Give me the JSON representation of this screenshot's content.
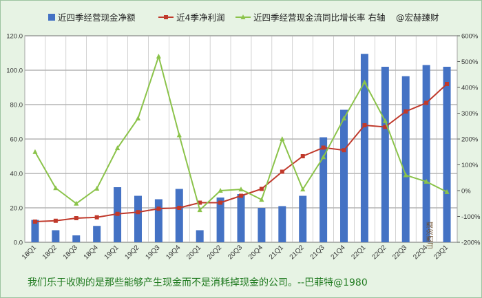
{
  "chart_data": {
    "type": "bar+line",
    "categories": [
      "18Q1",
      "18Q2",
      "18Q3",
      "18Q4",
      "19Q1",
      "19Q2",
      "19Q3",
      "19Q4",
      "20Q1",
      "20Q2",
      "20Q3",
      "20Q4",
      "21Q1",
      "21Q2",
      "21Q3",
      "21Q4",
      "22Q1",
      "22Q2",
      "22Q3",
      "22Q4",
      "23Q1"
    ],
    "series": [
      {
        "name": "近四季经营现金净额",
        "type": "bar",
        "axis": "left",
        "color": "#4472c4",
        "values": [
          13,
          7,
          4,
          9.5,
          32,
          27,
          25,
          31,
          7,
          26,
          28,
          20,
          21,
          27,
          61,
          77,
          109.5,
          102,
          96.5,
          103,
          102
        ]
      },
      {
        "name": "近4季净利润",
        "type": "line",
        "axis": "left",
        "color": "#c0392b",
        "values": [
          12,
          12.5,
          14,
          14.5,
          16.5,
          17.5,
          19.5,
          20,
          23,
          23,
          27,
          31,
          41,
          50,
          55,
          53.5,
          68,
          67,
          76,
          81,
          92
        ]
      },
      {
        "name": "近四季经营现金流同比增长率 右轴",
        "type": "line",
        "axis": "right",
        "color": "#8bc34a",
        "values": [
          150,
          10,
          -50,
          8,
          165,
          280,
          520,
          215,
          -75,
          0,
          5,
          -35,
          200,
          5,
          130,
          280,
          420,
          270,
          60,
          35,
          -5
        ]
      }
    ],
    "legend_extra": "@宏赫臻财",
    "y_left": {
      "min": 0,
      "max": 120,
      "ticks": [
        "0.0",
        "20.0",
        "40.0",
        "60.0",
        "80.0",
        "100.0",
        "120.0"
      ]
    },
    "y_right": {
      "min": -200,
      "max": 600,
      "ticks": [
        "-200%",
        "-100%",
        "0%",
        "100%",
        "200%",
        "300%",
        "400%",
        "500%",
        "600%"
      ]
    },
    "grid": true,
    "legend_position": "top"
  },
  "quote": "我们乐于收购的是那些能够产生现金而不是消耗掉现金的公司。--巴菲特@1980",
  "stamp": "山西汾酒"
}
